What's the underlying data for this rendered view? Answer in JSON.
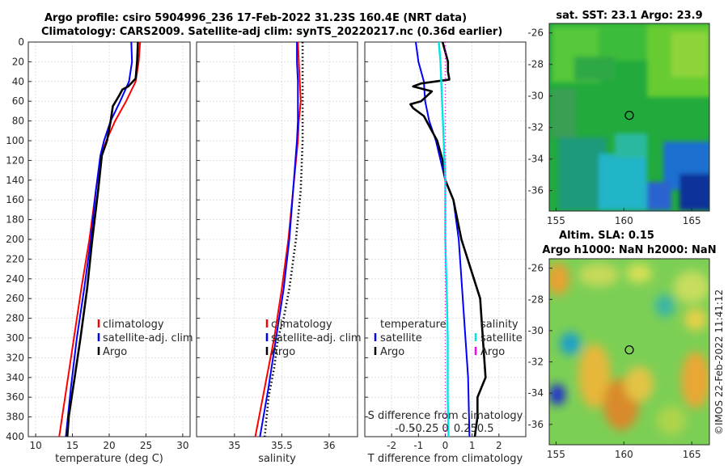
{
  "header": {
    "line1": "Argo profile: csiro 5904996_236 17-Feb-2022 31.23S 160.4E (NRT data)",
    "line2": "Climatology: CARS2009. Satellite-adj clim: synTS_20220217.nc (0.36d earlier)"
  },
  "watermark": "©IMOS 22-Feb-2022 11:41:12",
  "colors": {
    "climatology": "#ff0000",
    "satellite": "#0000ff",
    "argo": "#000000",
    "salinity": "#00e5e5",
    "salinity_argo": "#ff00ff"
  },
  "chart_data": [
    {
      "type": "line",
      "name": "temperature",
      "xlabel": "temperature (deg C)",
      "ylabel": "",
      "xlim": [
        9,
        31
      ],
      "ylim": [
        400,
        0
      ],
      "xticks": [
        10,
        15,
        20,
        25,
        30
      ],
      "yticks": [
        0,
        20,
        40,
        60,
        80,
        100,
        120,
        140,
        160,
        180,
        200,
        220,
        240,
        260,
        280,
        300,
        320,
        340,
        360,
        380,
        400
      ],
      "grid": true,
      "legend": {
        "placement": "lower-right",
        "entries": [
          "climatology",
          "satellite-adj. clim",
          "Argo"
        ]
      },
      "series": [
        {
          "name": "climatology",
          "color": "#ff0000",
          "depth": [
            0,
            20,
            40,
            60,
            80,
            100,
            115,
            150,
            200,
            250,
            300,
            350,
            400
          ],
          "values": [
            24.2,
            24.0,
            23.6,
            22.3,
            20.8,
            19.6,
            18.9,
            18.2,
            17.3,
            16.2,
            15.2,
            14.2,
            13.2
          ]
        },
        {
          "name": "satellite-adj. clim",
          "color": "#0000ff",
          "depth": [
            0,
            20,
            40,
            60,
            80,
            100,
            115,
            150,
            200,
            250,
            300,
            350,
            400
          ],
          "values": [
            23.0,
            23.1,
            22.7,
            21.5,
            20.2,
            19.3,
            18.8,
            18.2,
            17.5,
            16.6,
            15.6,
            14.8,
            14.1
          ]
        },
        {
          "name": "Argo",
          "color": "#000000",
          "depth": [
            0,
            20,
            37,
            45,
            48,
            55,
            65,
            80,
            100,
            115,
            150,
            200,
            250,
            300,
            340,
            360,
            380,
            400
          ],
          "values": [
            23.9,
            23.8,
            23.6,
            22.6,
            21.8,
            21.3,
            20.5,
            20.2,
            19.7,
            19.0,
            18.5,
            17.7,
            17.0,
            16.1,
            15.3,
            14.9,
            14.5,
            14.3
          ]
        }
      ]
    },
    {
      "type": "line",
      "name": "salinity",
      "xlabel": "salinity",
      "ylabel": "",
      "xlim": [
        34.6,
        36.3
      ],
      "ylim": [
        400,
        0
      ],
      "xticks": [
        35,
        35.5,
        36
      ],
      "xtick_labels": [
        "35",
        "35.5",
        "36"
      ],
      "grid": true,
      "legend": {
        "placement": "lower-right",
        "entries": [
          "climatology",
          "satellite-adj. clim",
          "Argo"
        ]
      },
      "series": [
        {
          "name": "climatology",
          "color": "#ff0000",
          "depth": [
            0,
            20,
            40,
            60,
            80,
            100,
            150,
            200,
            250,
            300,
            350,
            400
          ],
          "values": [
            35.67,
            35.68,
            35.69,
            35.7,
            35.68,
            35.67,
            35.62,
            35.57,
            35.5,
            35.42,
            35.32,
            35.22
          ]
        },
        {
          "name": "satellite-adj. clim",
          "color": "#0000ff",
          "depth": [
            0,
            20,
            40,
            60,
            80,
            100,
            150,
            200,
            250,
            300,
            350,
            400
          ],
          "values": [
            35.66,
            35.66,
            35.67,
            35.67,
            35.67,
            35.66,
            35.62,
            35.58,
            35.52,
            35.44,
            35.36,
            35.27
          ]
        },
        {
          "name": "Argo",
          "color": "#000000",
          "depth": [
            0,
            40,
            100,
            150,
            200,
            250,
            280,
            300,
            330,
            360,
            380,
            400
          ],
          "values": [
            35.72,
            35.72,
            35.72,
            35.7,
            35.65,
            35.58,
            35.52,
            35.46,
            35.42,
            35.36,
            35.34,
            35.32
          ]
        }
      ]
    },
    {
      "type": "line",
      "name": "differences",
      "xlabel": "T difference from climatology",
      "xlabel_top": "S difference from climatology",
      "xlim": [
        -3,
        3
      ],
      "ylim": [
        400,
        0
      ],
      "xticks": [
        -2,
        -1,
        0,
        1,
        2
      ],
      "xtick_labels": [
        "-2",
        "-1",
        "0",
        "1",
        "2"
      ],
      "xticks_top": [
        -0.5,
        -0.25,
        0,
        0.25,
        0.5
      ],
      "xtick_labels_top": [
        "-0.5",
        "-0.25",
        "0",
        "0.25",
        "0.5"
      ],
      "grid": true,
      "legend": {
        "placement": "lower-right",
        "temperature_heading": "temperature",
        "salinity_heading": "salinity",
        "entries": [
          "satellite",
          "Argo"
        ]
      },
      "series": [
        {
          "name": "temperature satellite",
          "color": "#0000ff",
          "depth": [
            0,
            20,
            40,
            60,
            80,
            100,
            140,
            160,
            200,
            260,
            300,
            340,
            400
          ],
          "values": [
            -1.1,
            -1.0,
            -0.8,
            -0.75,
            -0.6,
            -0.35,
            0.0,
            0.3,
            0.5,
            0.65,
            0.75,
            0.85,
            0.9
          ]
        },
        {
          "name": "temperature Argo",
          "color": "#000000",
          "depth": [
            0,
            10,
            20,
            30,
            38,
            42,
            45,
            50,
            55,
            60,
            63,
            67,
            75,
            85,
            100,
            120,
            140,
            160,
            200,
            260,
            300,
            340,
            360,
            380,
            400
          ],
          "values": [
            -0.1,
            0.0,
            0.1,
            0.1,
            0.15,
            -0.9,
            -1.2,
            -0.5,
            -0.7,
            -0.9,
            -1.3,
            -1.2,
            -0.8,
            -0.6,
            -0.3,
            -0.1,
            0.0,
            0.3,
            0.6,
            1.3,
            1.4,
            1.5,
            1.2,
            1.2,
            1.1
          ]
        },
        {
          "name": "salinity satellite",
          "color": "#00e5e5",
          "depth": [
            0,
            20,
            40,
            100,
            140,
            200,
            260,
            300,
            360,
            400
          ],
          "values": [
            -0.08,
            -0.06,
            -0.05,
            -0.02,
            0.0,
            0.0,
            0.02,
            0.03,
            0.03,
            0.04
          ]
        },
        {
          "name": "salinity Argo",
          "color": "#ff00ff",
          "depth": [
            0,
            40,
            100,
            200,
            300,
            400
          ],
          "values": [
            0.0,
            0.0,
            0.0,
            0.0,
            0.0,
            0.0
          ]
        }
      ]
    },
    {
      "type": "heatmap",
      "name": "sst-map",
      "title": "sat. SST: 23.1  Argo: 23.9",
      "xlim": [
        154.5,
        166.3
      ],
      "ylim": [
        -37.3,
        -25.4
      ],
      "xticks": [
        155,
        160,
        165
      ],
      "yticks": [
        -26,
        -28,
        -30,
        -32,
        -34,
        -36
      ],
      "marker": {
        "lon": 160.4,
        "lat": -31.23
      }
    },
    {
      "type": "heatmap",
      "name": "sla-map",
      "title_line1": "Altim. SLA: 0.15",
      "title_line2": "Argo h1000: NaN h2000: NaN",
      "xlim": [
        154.5,
        166.3
      ],
      "ylim": [
        -37.3,
        -25.4
      ],
      "xticks": [
        155,
        160,
        165
      ],
      "yticks": [
        -26,
        -28,
        -30,
        -32,
        -34,
        -36
      ],
      "marker": {
        "lon": 160.4,
        "lat": -31.23
      }
    }
  ]
}
